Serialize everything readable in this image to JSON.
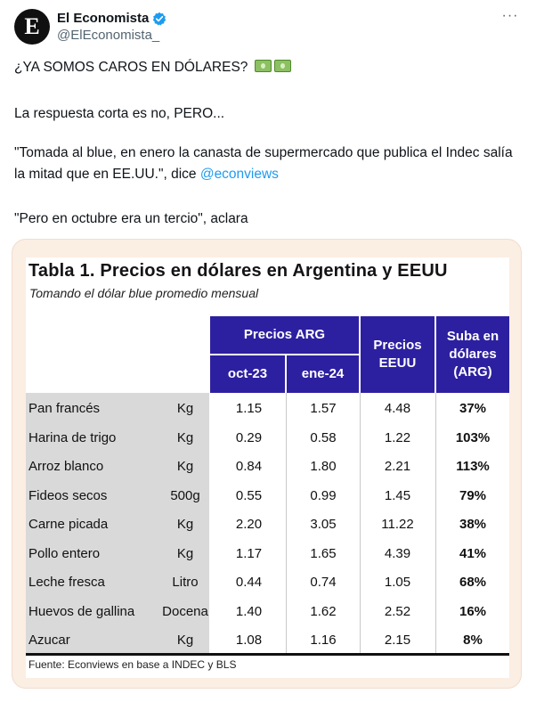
{
  "account": {
    "avatar_letter": "E",
    "display_name": "El Economista",
    "handle": "@ElEconomista_",
    "verified_color": "#1d9bf0",
    "more_label": "···"
  },
  "tweet": {
    "line1": "¿YA SOMOS CAROS EN DÓLARES?",
    "line1_emoji": [
      "money-bill-icon",
      "money-bill-icon"
    ],
    "line2": "La respuesta corta es no, PERO...",
    "line3": "\"Tomada al blue, en enero la canasta de supermercado que publica el Indec salía la mitad que en EE.UU.\", dice ",
    "mention": "@econviews",
    "line4": "\"Pero en octubre era un tercio\", aclara"
  },
  "table": {
    "title": "Tabla 1. Precios en dólares en Argentina y EEUU",
    "subtitle": "Tomando el dólar blue promedio mensual",
    "headers": {
      "precios_arg": "Precios ARG",
      "oct": "oct-23",
      "ene": "ene-24",
      "precios_eeuu": "Precios EEUU",
      "suba": "Suba en dólares (ARG)"
    },
    "header_color": "#2d20a0",
    "rows": [
      {
        "name": "Pan francés",
        "unit": "Kg",
        "oct": "1.15",
        "ene": "1.57",
        "eeuu": "4.48",
        "pct": "37%"
      },
      {
        "name": "Harina de trigo",
        "unit": "Kg",
        "oct": "0.29",
        "ene": "0.58",
        "eeuu": "1.22",
        "pct": "103%"
      },
      {
        "name": "Arroz blanco",
        "unit": "Kg",
        "oct": "0.84",
        "ene": "1.80",
        "eeuu": "2.21",
        "pct": "113%"
      },
      {
        "name": "Fideos secos",
        "unit": "500g",
        "oct": "0.55",
        "ene": "0.99",
        "eeuu": "1.45",
        "pct": "79%"
      },
      {
        "name": "Carne picada",
        "unit": "Kg",
        "oct": "2.20",
        "ene": "3.05",
        "eeuu": "11.22",
        "pct": "38%"
      },
      {
        "name": "Pollo entero",
        "unit": "Kg",
        "oct": "1.17",
        "ene": "1.65",
        "eeuu": "4.39",
        "pct": "41%"
      },
      {
        "name": "Leche fresca",
        "unit": "Litro",
        "oct": "0.44",
        "ene": "0.74",
        "eeuu": "1.05",
        "pct": "68%"
      },
      {
        "name": "Huevos de gallina",
        "unit": "Docena",
        "oct": "1.40",
        "ene": "1.62",
        "eeuu": "2.52",
        "pct": "16%"
      },
      {
        "name": "Azucar",
        "unit": "Kg",
        "oct": "1.08",
        "ene": "1.16",
        "eeuu": "2.15",
        "pct": "8%"
      }
    ],
    "source": "Fuente: Econviews en base a INDEC y BLS"
  }
}
